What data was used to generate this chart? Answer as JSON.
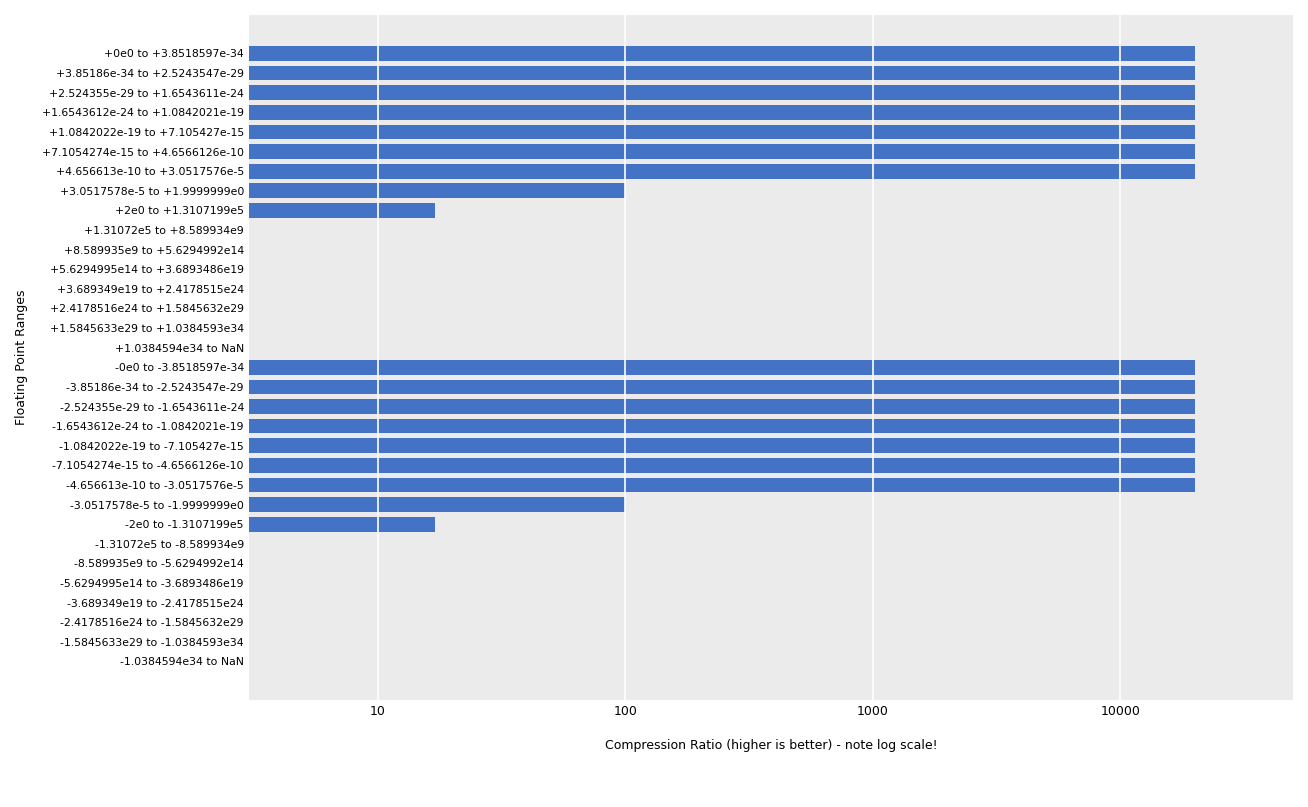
{
  "title": "",
  "xlabel": "Compression Ratio (higher is better) - note log scale!",
  "ylabel": "Floating Point Ranges",
  "bar_color": "#4472C4",
  "categories": [
    "+0e0 to +3.8518597e-34",
    "+3.85186e-34 to +2.5243547e-29",
    "+2.524355e-29 to +1.6543611e-24",
    "+1.6543612e-24 to +1.0842021e-19",
    "+1.0842022e-19 to +7.105427e-15",
    "+7.1054274e-15 to +4.6566126e-10",
    "+4.656613e-10 to +3.0517576e-5",
    "+3.0517578e-5 to +1.9999999e0",
    "+2e0 to +1.3107199e5",
    "+1.31072e5 to +8.589934e9",
    "+8.589935e9 to +5.6294992e14",
    "+5.6294995e14 to +3.6893486e19",
    "+3.689349e19 to +2.4178515e24",
    "+2.4178516e24 to +1.5845632e29",
    "+1.5845633e29 to +1.0384593e34",
    "+1.0384594e34 to NaN",
    "-0e0 to -3.8518597e-34",
    "-3.85186e-34 to -2.5243547e-29",
    "-2.524355e-29 to -1.6543611e-24",
    "-1.6543612e-24 to -1.0842021e-19",
    "-1.0842022e-19 to -7.105427e-15",
    "-7.1054274e-15 to -4.6566126e-10",
    "-4.656613e-10 to -3.0517576e-5",
    "-3.0517578e-5 to -1.9999999e0",
    "-2e0 to -1.3107199e5",
    "-1.31072e5 to -8.589934e9",
    "-8.589935e9 to -5.6294992e14",
    "-5.6294995e14 to -3.6893486e19",
    "-3.689349e19 to -2.4178515e24",
    "-2.4178516e24 to -1.5845632e29",
    "-1.5845633e29 to -1.0384593e34",
    "-1.0384594e34 to NaN"
  ],
  "values": [
    20000,
    20000,
    20000,
    20000,
    20000,
    20000,
    20000,
    100,
    17,
    2.2,
    2.2,
    1.1,
    1.5,
    1.5,
    1.5,
    2.2,
    20000,
    20000,
    20000,
    20000,
    20000,
    20000,
    20000,
    100,
    17,
    2.2,
    2.2,
    1.1,
    1.5,
    1.5,
    1.5,
    2.2
  ],
  "xlim_min": 3,
  "xlim_max": 50000,
  "xticks": [
    10,
    100,
    1000,
    10000
  ],
  "figsize": [
    13.08,
    8.07
  ],
  "dpi": 100,
  "bar_height": 0.75,
  "facecolor": "#ffffff",
  "grid_color": "#ffffff",
  "ytick_fontsize": 7.8,
  "xlabel_fontsize": 9
}
